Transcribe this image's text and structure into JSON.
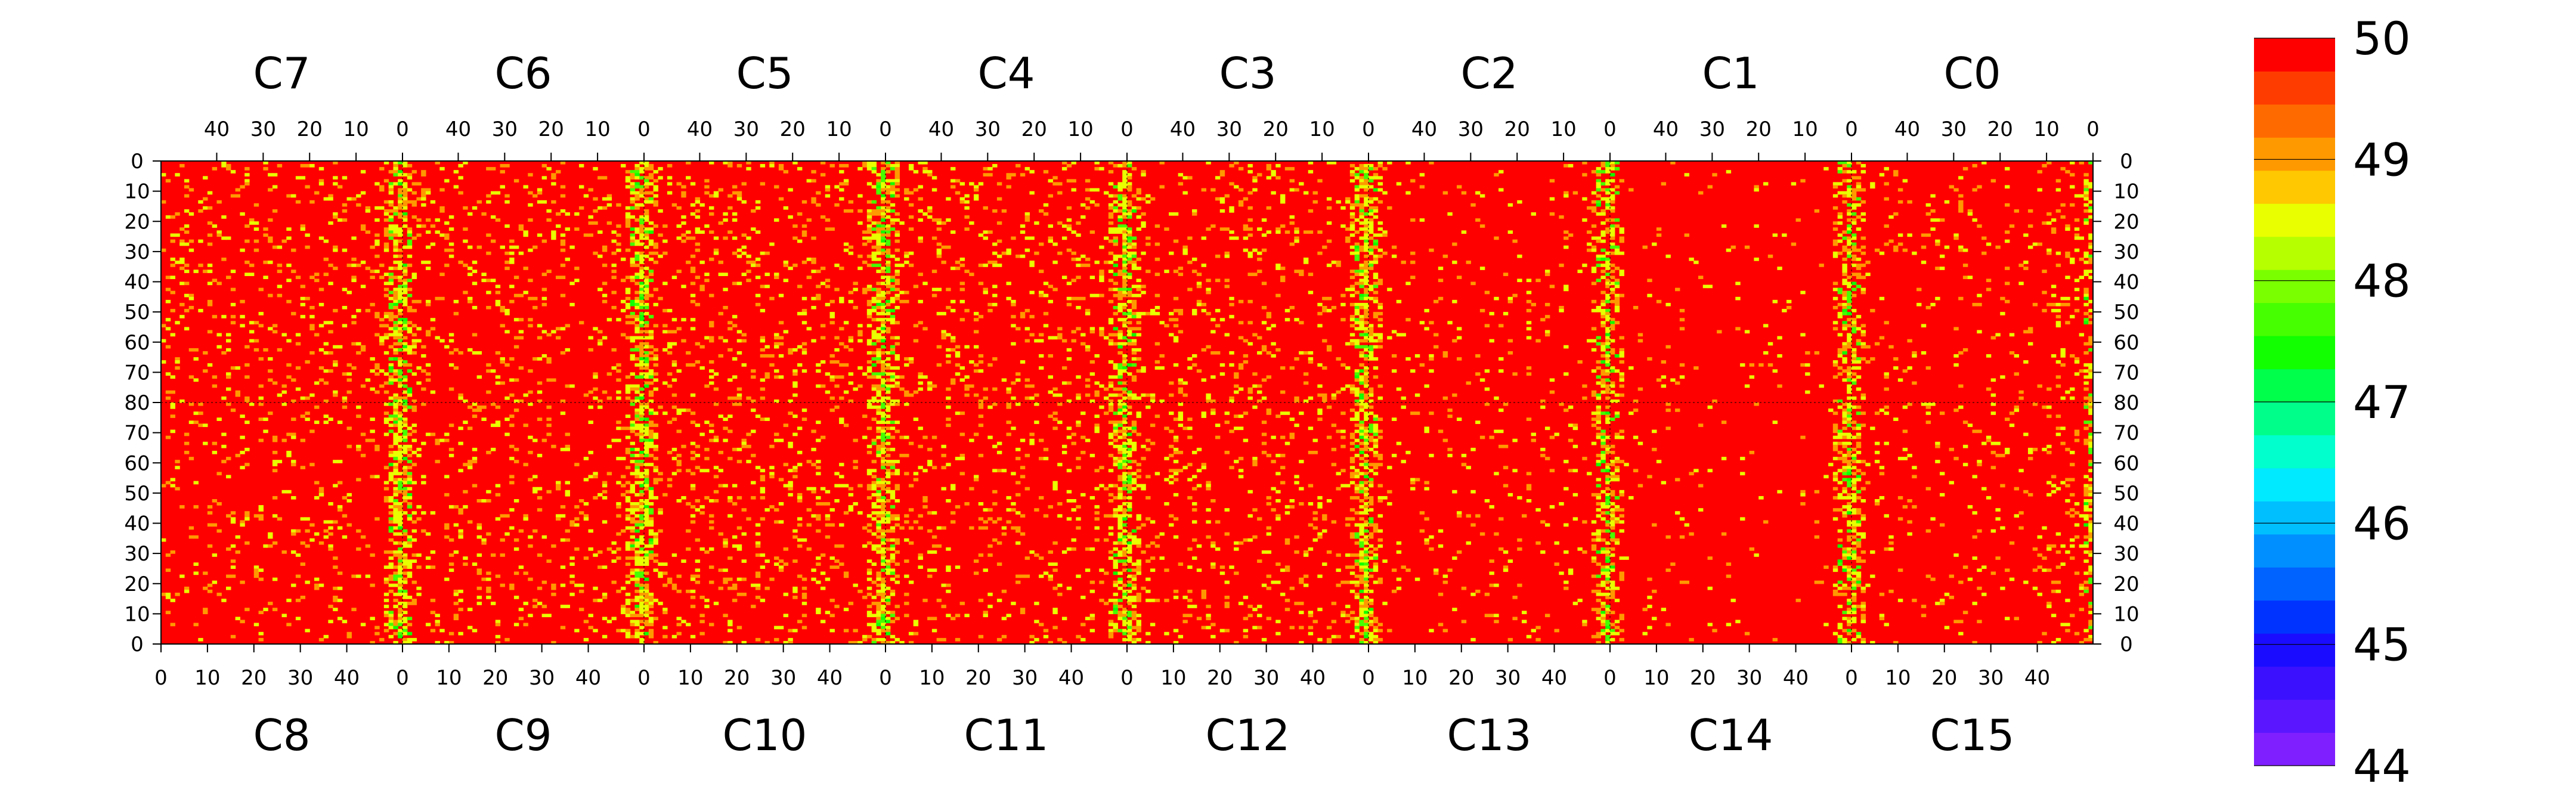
{
  "chart_data": {
    "type": "heatmap",
    "chips_top": [
      "C7",
      "C6",
      "C5",
      "C4",
      "C3",
      "C2",
      "C1",
      "C0"
    ],
    "chips_bottom": [
      "C8",
      "C9",
      "C10",
      "C11",
      "C12",
      "C13",
      "C14",
      "C15"
    ],
    "columns_per_chip": 52,
    "rows_per_half": 80,
    "x_ticks_top": [
      "40",
      "30",
      "20",
      "10",
      "0"
    ],
    "x_ticks_bottom": [
      "0",
      "10",
      "20",
      "30",
      "40"
    ],
    "y_ticks_upper": [
      "0",
      "10",
      "20",
      "30",
      "40",
      "50",
      "60",
      "70",
      "80"
    ],
    "y_ticks_lower": [
      "70",
      "60",
      "50",
      "40",
      "30",
      "20",
      "10",
      "0"
    ],
    "color_scale": {
      "min": 44,
      "max": 50,
      "levels": 20,
      "labels": [
        "50",
        "49",
        "48",
        "47",
        "46",
        "45",
        "44"
      ],
      "colors": [
        "#7f1fff",
        "#5a17ff",
        "#3b10ff",
        "#1a0dff",
        "#0033ff",
        "#0062ff",
        "#008fff",
        "#00bfff",
        "#00eaff",
        "#00ffcc",
        "#00ff8a",
        "#00ff4a",
        "#11ff00",
        "#46ff00",
        "#7aff00",
        "#b6ff00",
        "#e9ff00",
        "#ffc800",
        "#ff9900",
        "#ff6a00",
        "#ff3c00",
        "#ff0000"
      ]
    },
    "value_summary": {
      "dominant_value": 50,
      "typical_low_values": [
        49,
        48.5
      ],
      "minimum_visible": 47.5,
      "note_free": true
    },
    "hot_columns_rel_seam": [
      0.0,
      0.5,
      1.0,
      2.0,
      3.0,
      4.0,
      5.0,
      6.0,
      7.0,
      8.0
    ],
    "chip_noise_density": [
      0.1,
      0.1,
      0.11,
      0.11,
      0.1,
      0.05,
      0.025,
      0.06,
      0.08,
      0.1,
      0.11,
      0.09,
      0.1,
      0.05,
      0.025,
      0.05
    ]
  }
}
